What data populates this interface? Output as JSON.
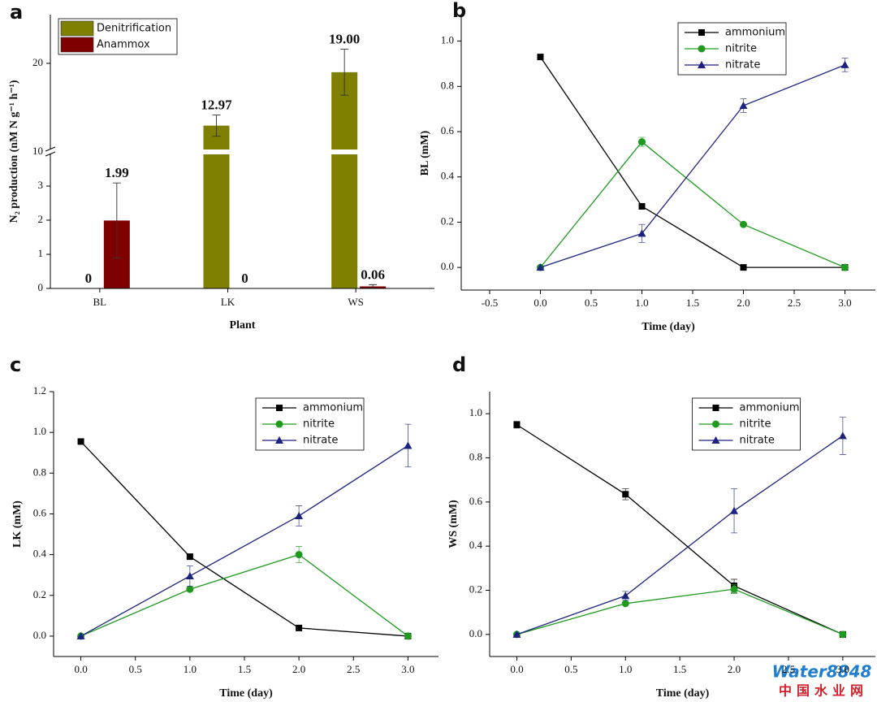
{
  "chart_data": [
    {
      "type": "bar",
      "panel": "a",
      "xlabel": "Plant",
      "ylabel": "N₂ production (nM N g⁻¹ h⁻¹)",
      "categories": [
        "BL",
        "LK",
        "WS"
      ],
      "series": [
        {
          "name": "Denitrification",
          "color": "#7f7f00",
          "values": [
            0,
            12.97,
            19.0
          ],
          "value_labels": [
            "0",
            "12.97",
            "19.00"
          ],
          "errors": [
            0,
            1.2,
            2.6
          ]
        },
        {
          "name": "Anammox",
          "color": "#7f0000",
          "values": [
            1.99,
            0,
            0.06
          ],
          "value_labels": [
            "1.99",
            "0",
            "0.06"
          ],
          "errors": [
            1.1,
            0,
            0.05
          ]
        }
      ],
      "ylim": [
        0,
        25.5
      ],
      "ybreak": [
        4,
        10
      ],
      "yticks": [
        0,
        1,
        2,
        3,
        10,
        20
      ],
      "legend": "upper left"
    },
    {
      "type": "line",
      "panel": "b",
      "xlabel": "Time (day)",
      "ylabel": "BL (mM)",
      "x": [
        0,
        1,
        2,
        3
      ],
      "series": [
        {
          "name": "ammonium",
          "color": "#000000",
          "marker": "square",
          "values": [
            0.93,
            0.27,
            0,
            0
          ],
          "errors": [
            0,
            0,
            0,
            0
          ]
        },
        {
          "name": "nitrite",
          "color": "#1f9a1f",
          "marker": "circle",
          "values": [
            0,
            0.555,
            0.19,
            0
          ],
          "errors": [
            0,
            0.02,
            0,
            0
          ]
        },
        {
          "name": "nitrate",
          "color": "#1c237f",
          "marker": "triangle",
          "values": [
            0,
            0.15,
            0.715,
            0.895
          ],
          "errors": [
            0,
            0.04,
            0.03,
            0.03
          ]
        }
      ],
      "xlim": [
        -0.78,
        3.3
      ],
      "xticks": [
        -0.5,
        {
          "value": 0,
          "label": "0.0"
        },
        0.5,
        {
          "value": 1,
          "label": "1.0"
        },
        1.5,
        {
          "value": 2,
          "label": "2.0"
        },
        2.5,
        {
          "value": 3,
          "label": "3.0"
        }
      ],
      "ylim": [
        -0.1,
        1.11
      ],
      "yticks": [
        {
          "value": 0,
          "label": "0.0"
        },
        0.2,
        0.4,
        0.6,
        0.8,
        {
          "value": 1,
          "label": "1.0"
        }
      ],
      "legend": "upper center"
    },
    {
      "type": "line",
      "panel": "c",
      "xlabel": "Time (day)",
      "ylabel": "LK (mM)",
      "x": [
        0,
        1,
        2,
        3
      ],
      "series": [
        {
          "name": "ammonium",
          "color": "#000000",
          "marker": "square",
          "values": [
            0.955,
            0.39,
            0.04,
            0
          ],
          "errors": [
            0,
            0.01,
            0,
            0
          ]
        },
        {
          "name": "nitrite",
          "color": "#1f9a1f",
          "marker": "circle",
          "values": [
            0,
            0.23,
            0.4,
            0
          ],
          "errors": [
            0,
            0.01,
            0.04,
            0
          ]
        },
        {
          "name": "nitrate",
          "color": "#1c237f",
          "marker": "triangle",
          "values": [
            0,
            0.295,
            0.59,
            0.935
          ],
          "errors": [
            0,
            0.05,
            0.05,
            0.105
          ]
        }
      ],
      "xlim": [
        -0.25,
        3.28
      ],
      "xticks": [
        {
          "value": 0,
          "label": "0.0"
        },
        0.5,
        {
          "value": 1,
          "label": "1.0"
        },
        1.5,
        {
          "value": 2,
          "label": "2.0"
        },
        2.5,
        {
          "value": 3,
          "label": "3.0"
        }
      ],
      "ylim": [
        -0.1,
        1.2
      ],
      "yticks": [
        {
          "value": 0,
          "label": "0.0"
        },
        0.2,
        0.4,
        0.6,
        0.8,
        {
          "value": 1,
          "label": "1.0"
        },
        1.2
      ],
      "legend": "upper center"
    },
    {
      "type": "line",
      "panel": "d",
      "xlabel": "Time (day)",
      "ylabel": "WS (mM)",
      "x": [
        0,
        1,
        2,
        3
      ],
      "series": [
        {
          "name": "ammonium",
          "color": "#000000",
          "marker": "square",
          "values": [
            0.95,
            0.635,
            0.22,
            0
          ],
          "errors": [
            0.015,
            0.025,
            0.03,
            0
          ]
        },
        {
          "name": "nitrite",
          "color": "#1f9a1f",
          "marker": "circle",
          "values": [
            0,
            0.14,
            0.205,
            0
          ],
          "errors": [
            0,
            0,
            0.02,
            0
          ]
        },
        {
          "name": "nitrate",
          "color": "#1c237f",
          "marker": "triangle",
          "values": [
            0,
            0.175,
            0.56,
            0.9
          ],
          "errors": [
            0,
            0.02,
            0.1,
            0.085
          ]
        }
      ],
      "xlim": [
        -0.25,
        3.3
      ],
      "xticks": [
        {
          "value": 0,
          "label": "0.0"
        },
        0.5,
        {
          "value": 1,
          "label": "1.0"
        },
        1.5,
        {
          "value": 2,
          "label": "2.0"
        },
        2.5,
        {
          "value": 3,
          "label": "3.0"
        }
      ],
      "ylim": [
        -0.1,
        1.1
      ],
      "yticks": [
        {
          "value": 0,
          "label": "0.0"
        },
        0.2,
        0.4,
        0.6,
        0.8,
        {
          "value": 1,
          "label": "1.0"
        }
      ],
      "legend": "upper center"
    }
  ],
  "watermark": [
    "Water8848",
    "中国水业网"
  ]
}
